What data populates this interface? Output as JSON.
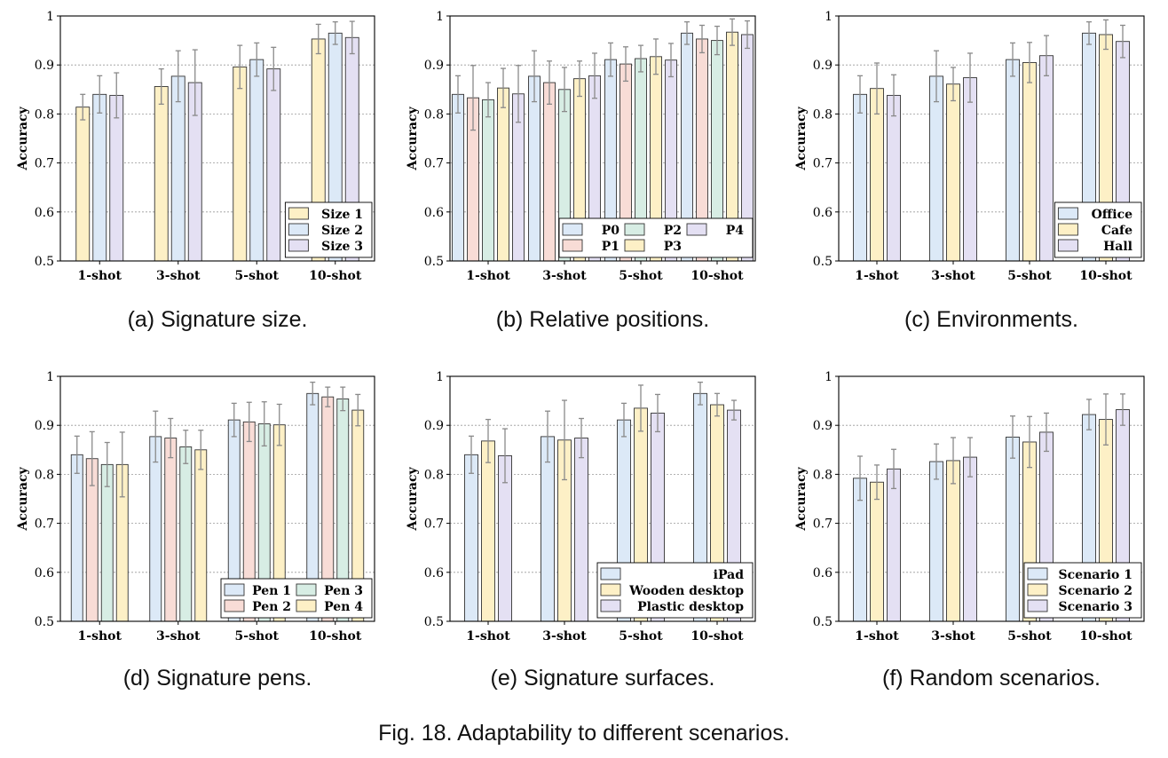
{
  "figure": {
    "caption": "Fig. 18.  Adaptability to different scenarios."
  },
  "colors": {
    "blue": "#dce9f7",
    "yellow": "#fdf0c6",
    "purple": "#e4e0f3",
    "pink": "#f8dcd6",
    "green": "#d7ede4",
    "edge": "#333333",
    "error": "#8a8a8a",
    "grid": "#999999"
  },
  "chart_data": [
    {
      "type": "bar",
      "caption": "(a) Signature size.",
      "ylabel": "Accuracy",
      "ylim": [
        0.5,
        1
      ],
      "yticks": [
        "0.5",
        "0.6",
        "0.7",
        "0.8",
        "0.9",
        "1"
      ],
      "categories": [
        "1-shot",
        "3-shot",
        "5-shot",
        "10-shot"
      ],
      "legend": {
        "position": "lower-right",
        "columns": 1
      },
      "series": [
        {
          "name": "Size 1",
          "color": "yellow",
          "values": [
            0.814,
            0.856,
            0.896,
            0.953
          ],
          "errors": [
            0.026,
            0.036,
            0.044,
            0.03
          ]
        },
        {
          "name": "Size 2",
          "color": "blue",
          "values": [
            0.84,
            0.877,
            0.911,
            0.965
          ],
          "errors": [
            0.038,
            0.052,
            0.034,
            0.023
          ]
        },
        {
          "name": "Size 3",
          "color": "purple",
          "values": [
            0.838,
            0.864,
            0.892,
            0.956
          ],
          "errors": [
            0.046,
            0.067,
            0.044,
            0.033
          ]
        }
      ]
    },
    {
      "type": "bar",
      "caption": "(b) Relative positions.",
      "ylabel": "Accuracy",
      "ylim": [
        0.5,
        1
      ],
      "yticks": [
        "0.5",
        "0.6",
        "0.7",
        "0.8",
        "0.9",
        "1"
      ],
      "categories": [
        "1-shot",
        "3-shot",
        "5-shot",
        "10-shot"
      ],
      "legend": {
        "position": "lower-right",
        "columns": 3
      },
      "series": [
        {
          "name": "P0",
          "color": "blue",
          "values": [
            0.84,
            0.877,
            0.911,
            0.965
          ],
          "errors": [
            0.038,
            0.052,
            0.034,
            0.023
          ]
        },
        {
          "name": "P1",
          "color": "pink",
          "values": [
            0.833,
            0.864,
            0.902,
            0.953
          ],
          "errors": [
            0.066,
            0.044,
            0.035,
            0.028
          ]
        },
        {
          "name": "P2",
          "color": "green",
          "values": [
            0.829,
            0.85,
            0.913,
            0.95
          ],
          "errors": [
            0.035,
            0.045,
            0.027,
            0.029
          ]
        },
        {
          "name": "P3",
          "color": "yellow",
          "values": [
            0.853,
            0.872,
            0.917,
            0.967
          ],
          "errors": [
            0.04,
            0.036,
            0.036,
            0.027
          ]
        },
        {
          "name": "P4",
          "color": "purple",
          "values": [
            0.841,
            0.878,
            0.91,
            0.962
          ],
          "errors": [
            0.058,
            0.046,
            0.034,
            0.028
          ]
        }
      ]
    },
    {
      "type": "bar",
      "caption": "(c) Environments.",
      "ylabel": "Accuracy",
      "ylim": [
        0.5,
        1
      ],
      "yticks": [
        "0.5",
        "0.6",
        "0.7",
        "0.8",
        "0.9",
        "1"
      ],
      "categories": [
        "1-shot",
        "3-shot",
        "5-shot",
        "10-shot"
      ],
      "legend": {
        "position": "lower-right",
        "columns": 1
      },
      "series": [
        {
          "name": "Office",
          "color": "blue",
          "values": [
            0.84,
            0.877,
            0.911,
            0.965
          ],
          "errors": [
            0.038,
            0.052,
            0.034,
            0.023
          ]
        },
        {
          "name": "Cafe",
          "color": "yellow",
          "values": [
            0.852,
            0.861,
            0.905,
            0.962
          ],
          "errors": [
            0.052,
            0.034,
            0.041,
            0.03
          ]
        },
        {
          "name": "Hall",
          "color": "purple",
          "values": [
            0.838,
            0.874,
            0.919,
            0.948
          ],
          "errors": [
            0.042,
            0.05,
            0.041,
            0.033
          ]
        }
      ]
    },
    {
      "type": "bar",
      "caption": "(d) Signature pens.",
      "ylabel": "Accuracy",
      "ylim": [
        0.5,
        1
      ],
      "yticks": [
        "0.5",
        "0.6",
        "0.7",
        "0.8",
        "0.9",
        "1"
      ],
      "categories": [
        "1-shot",
        "3-shot",
        "5-shot",
        "10-shot"
      ],
      "legend": {
        "position": "lower-right",
        "columns": 2
      },
      "series": [
        {
          "name": "Pen 1",
          "color": "blue",
          "values": [
            0.84,
            0.877,
            0.911,
            0.965
          ],
          "errors": [
            0.038,
            0.052,
            0.034,
            0.023
          ]
        },
        {
          "name": "Pen 2",
          "color": "pink",
          "values": [
            0.832,
            0.874,
            0.907,
            0.958
          ],
          "errors": [
            0.055,
            0.04,
            0.04,
            0.02
          ]
        },
        {
          "name": "Pen 3",
          "color": "green",
          "values": [
            0.82,
            0.856,
            0.903,
            0.954
          ],
          "errors": [
            0.045,
            0.034,
            0.045,
            0.024
          ]
        },
        {
          "name": "Pen 4",
          "color": "yellow",
          "values": [
            0.82,
            0.85,
            0.901,
            0.931
          ],
          "errors": [
            0.066,
            0.04,
            0.042,
            0.032
          ]
        }
      ]
    },
    {
      "type": "bar",
      "caption": "(e) Signature surfaces.",
      "ylabel": "Accuracy",
      "ylim": [
        0.5,
        1
      ],
      "yticks": [
        "0.5",
        "0.6",
        "0.7",
        "0.8",
        "0.9",
        "1"
      ],
      "categories": [
        "1-shot",
        "3-shot",
        "5-shot",
        "10-shot"
      ],
      "legend": {
        "position": "lower-right",
        "columns": 1
      },
      "series": [
        {
          "name": "iPad",
          "color": "blue",
          "values": [
            0.84,
            0.877,
            0.911,
            0.965
          ],
          "errors": [
            0.038,
            0.052,
            0.034,
            0.023
          ]
        },
        {
          "name": "Wooden desktop",
          "color": "yellow",
          "values": [
            0.868,
            0.87,
            0.935,
            0.942
          ],
          "errors": [
            0.044,
            0.081,
            0.047,
            0.023
          ]
        },
        {
          "name": "Plastic desktop",
          "color": "purple",
          "values": [
            0.838,
            0.874,
            0.925,
            0.931
          ],
          "errors": [
            0.055,
            0.04,
            0.038,
            0.02
          ]
        }
      ]
    },
    {
      "type": "bar",
      "caption": "(f) Random scenarios.",
      "ylabel": "Accuracy",
      "ylim": [
        0.5,
        1
      ],
      "yticks": [
        "0.5",
        "0.6",
        "0.7",
        "0.8",
        "0.9",
        "1"
      ],
      "categories": [
        "1-shot",
        "3-shot",
        "5-shot",
        "10-shot"
      ],
      "legend": {
        "position": "lower-right",
        "columns": 1
      },
      "series": [
        {
          "name": "Scenario 1",
          "color": "blue",
          "values": [
            0.792,
            0.826,
            0.876,
            0.922
          ],
          "errors": [
            0.045,
            0.036,
            0.043,
            0.031
          ]
        },
        {
          "name": "Scenario 2",
          "color": "yellow",
          "values": [
            0.784,
            0.828,
            0.866,
            0.912
          ],
          "errors": [
            0.035,
            0.047,
            0.052,
            0.052
          ]
        },
        {
          "name": "Scenario 3",
          "color": "purple",
          "values": [
            0.811,
            0.835,
            0.886,
            0.932
          ],
          "errors": [
            0.04,
            0.04,
            0.039,
            0.032
          ]
        }
      ]
    }
  ]
}
